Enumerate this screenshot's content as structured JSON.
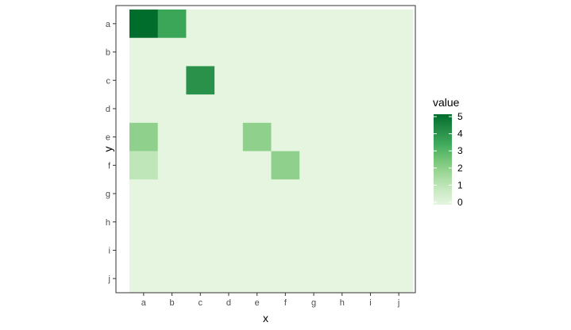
{
  "chart_data": {
    "type": "heatmap",
    "x_categories": [
      "a",
      "b",
      "c",
      "d",
      "e",
      "f",
      "g",
      "h",
      "i",
      "j"
    ],
    "y_categories": [
      "a",
      "b",
      "c",
      "d",
      "e",
      "f",
      "g",
      "h",
      "i",
      "j"
    ],
    "values": [
      [
        5,
        3.5,
        0,
        0,
        0,
        0,
        0,
        0,
        0,
        0
      ],
      [
        0,
        0,
        0,
        0,
        0,
        0,
        0,
        0,
        0,
        0
      ],
      [
        0,
        0,
        4,
        0,
        0,
        0,
        0,
        0,
        0,
        0
      ],
      [
        0,
        0,
        0,
        0,
        0,
        0,
        0,
        0,
        0,
        0
      ],
      [
        2,
        0,
        0,
        0,
        2,
        0,
        0,
        0,
        0,
        0
      ],
      [
        1,
        0,
        0,
        0,
        0,
        2,
        0,
        0,
        0,
        0
      ],
      [
        0,
        0,
        0,
        0,
        0,
        0,
        0,
        0,
        0,
        0
      ],
      [
        0,
        0,
        0,
        0,
        0,
        0,
        0,
        0,
        0,
        0
      ],
      [
        0,
        0,
        0,
        0,
        0,
        0,
        0,
        0,
        0,
        0
      ],
      [
        0,
        0,
        0,
        0,
        0,
        0,
        0,
        0,
        0,
        0
      ]
    ],
    "xlabel": "x",
    "ylabel": "y",
    "legend": {
      "title": "value",
      "breaks": [
        0,
        1,
        2,
        3,
        4,
        5
      ],
      "range": [
        0,
        5
      ],
      "position": "right"
    },
    "color_scale": [
      "#f7fcf5",
      "#e5f5e0",
      "#c7e9c0",
      "#a1d99b",
      "#74c476",
      "#41ab5d",
      "#238b45",
      "#006d2c"
    ],
    "panel_border": "#333333",
    "grid": false
  }
}
